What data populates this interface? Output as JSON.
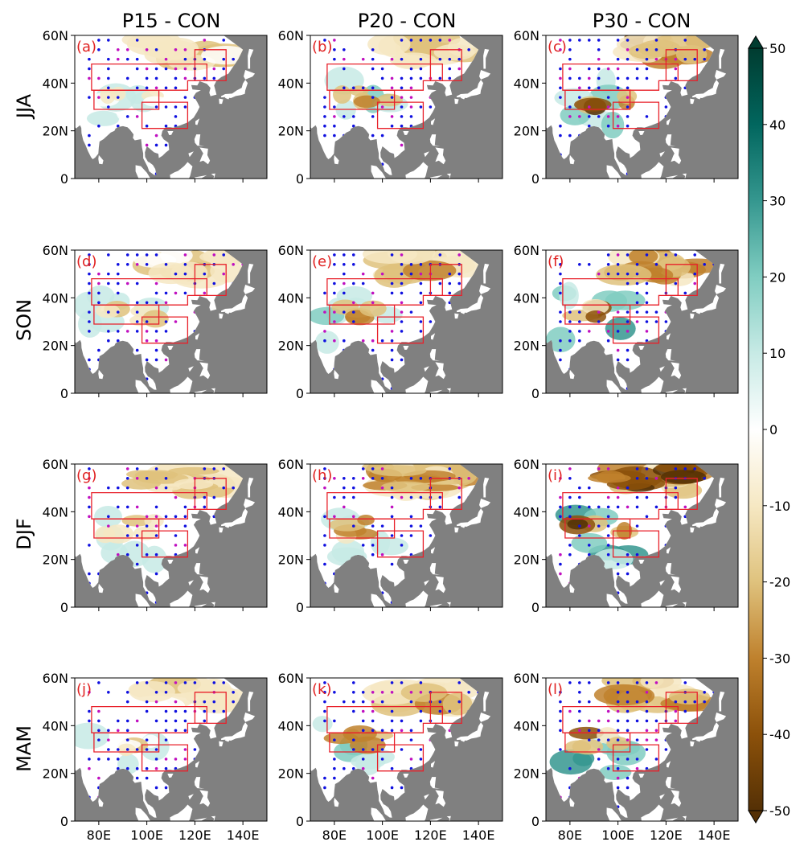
{
  "columns": [
    "P15 - CON",
    "P20 - CON",
    "P30 - CON"
  ],
  "rows": [
    "JJA",
    "SON",
    "DJF",
    "MAM"
  ],
  "panels": [
    "(a)",
    "(b)",
    "(c)",
    "(d)",
    "(e)",
    "(f)",
    "(g)",
    "(h)",
    "(i)",
    "(j)",
    "(k)",
    "(l)"
  ],
  "lat_ticks": [
    "60N",
    "40N",
    "20N",
    "0"
  ],
  "lon_ticks": [
    "80E",
    "100E",
    "120E",
    "140E"
  ],
  "colorbar": {
    "ticks": [
      "50",
      "40",
      "30",
      "20",
      "10",
      "0",
      "-10",
      "-20",
      "-30",
      "-40",
      "-50"
    ],
    "min": -50,
    "max": 50,
    "colors": [
      "#543005",
      "#8c510a",
      "#bf812d",
      "#dfc27d",
      "#f6e8c3",
      "#ffffff",
      "#c7eae5",
      "#80cdc1",
      "#35978f",
      "#01665e",
      "#003c30"
    ]
  },
  "colors": {
    "ocean": "#808080",
    "land": "#ffffff",
    "region_box": "#e8202a",
    "sig_dot_blue": "#1010e0",
    "sig_dot_magenta": "#c010c0",
    "panel_label": "#e02020"
  },
  "chart_data": {
    "type": "heatmap",
    "description_units": "lat/lon degrees",
    "lon_range": [
      70,
      150
    ],
    "lat_range": [
      0,
      60
    ],
    "region_boxes_lonlat": [
      [
        [
          77,
          48
        ],
        [
          125,
          48
        ],
        [
          125,
          41
        ],
        [
          117,
          41
        ],
        [
          117,
          37
        ],
        [
          77,
          37
        ]
      ],
      [
        [
          78,
          37
        ],
        [
          105,
          37
        ],
        [
          105,
          29
        ],
        [
          78,
          29
        ]
      ],
      [
        [
          98,
          32
        ],
        [
          117,
          32
        ],
        [
          117,
          21
        ],
        [
          98,
          21
        ]
      ],
      [
        [
          120,
          54
        ],
        [
          133,
          54
        ],
        [
          133,
          41
        ],
        [
          120,
          41
        ]
      ]
    ]
  }
}
